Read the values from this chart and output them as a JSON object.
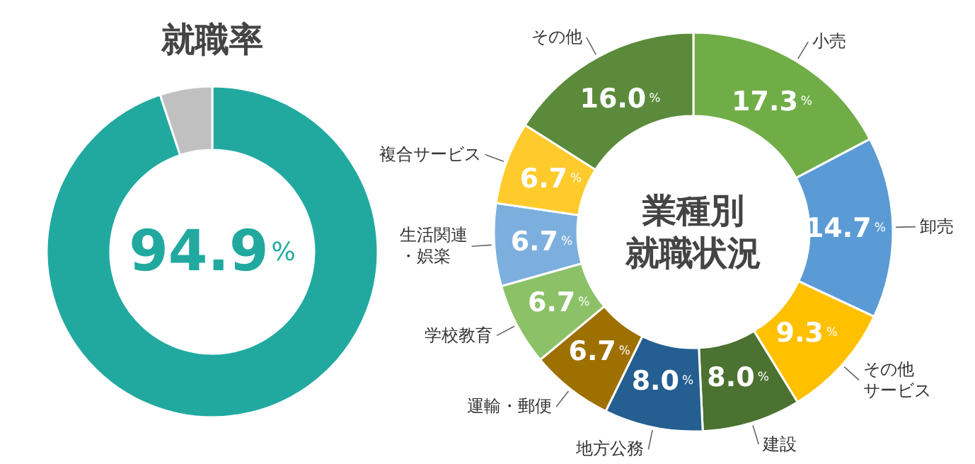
{
  "chart_data": [
    {
      "type": "donut",
      "title": "就職率",
      "categories": [
        null,
        null
      ],
      "values": [
        94.9,
        5.1
      ],
      "colors": [
        "#21a9a0",
        "#c0c0c0"
      ],
      "value_labels": [
        "94.9%",
        null
      ]
    },
    {
      "type": "donut",
      "title": "業種別就職状況",
      "categories": [
        "小売",
        "卸売",
        "その他サービス",
        "建設",
        "地方公務",
        "運輸・郵便",
        "学校教育",
        "生活関連・娯楽",
        "複合サービス",
        "その他"
      ],
      "values": [
        17.3,
        14.7,
        9.3,
        8.0,
        8.0,
        6.7,
        6.7,
        6.7,
        6.7,
        16.0
      ],
      "colors": [
        "#70ad47",
        "#5b9bd5",
        "#ffc000",
        "#4b7230",
        "#255e91",
        "#9e7000",
        "#8cc168",
        "#7cafde",
        "#ffca2c",
        "#5a8a3a"
      ],
      "value_labels": [
        "17.3%",
        "14.7%",
        "9.3%",
        "8.0%",
        "8.0%",
        "6.7%",
        "6.7%",
        "6.7%",
        "6.7%",
        "16.0%"
      ]
    }
  ]
}
